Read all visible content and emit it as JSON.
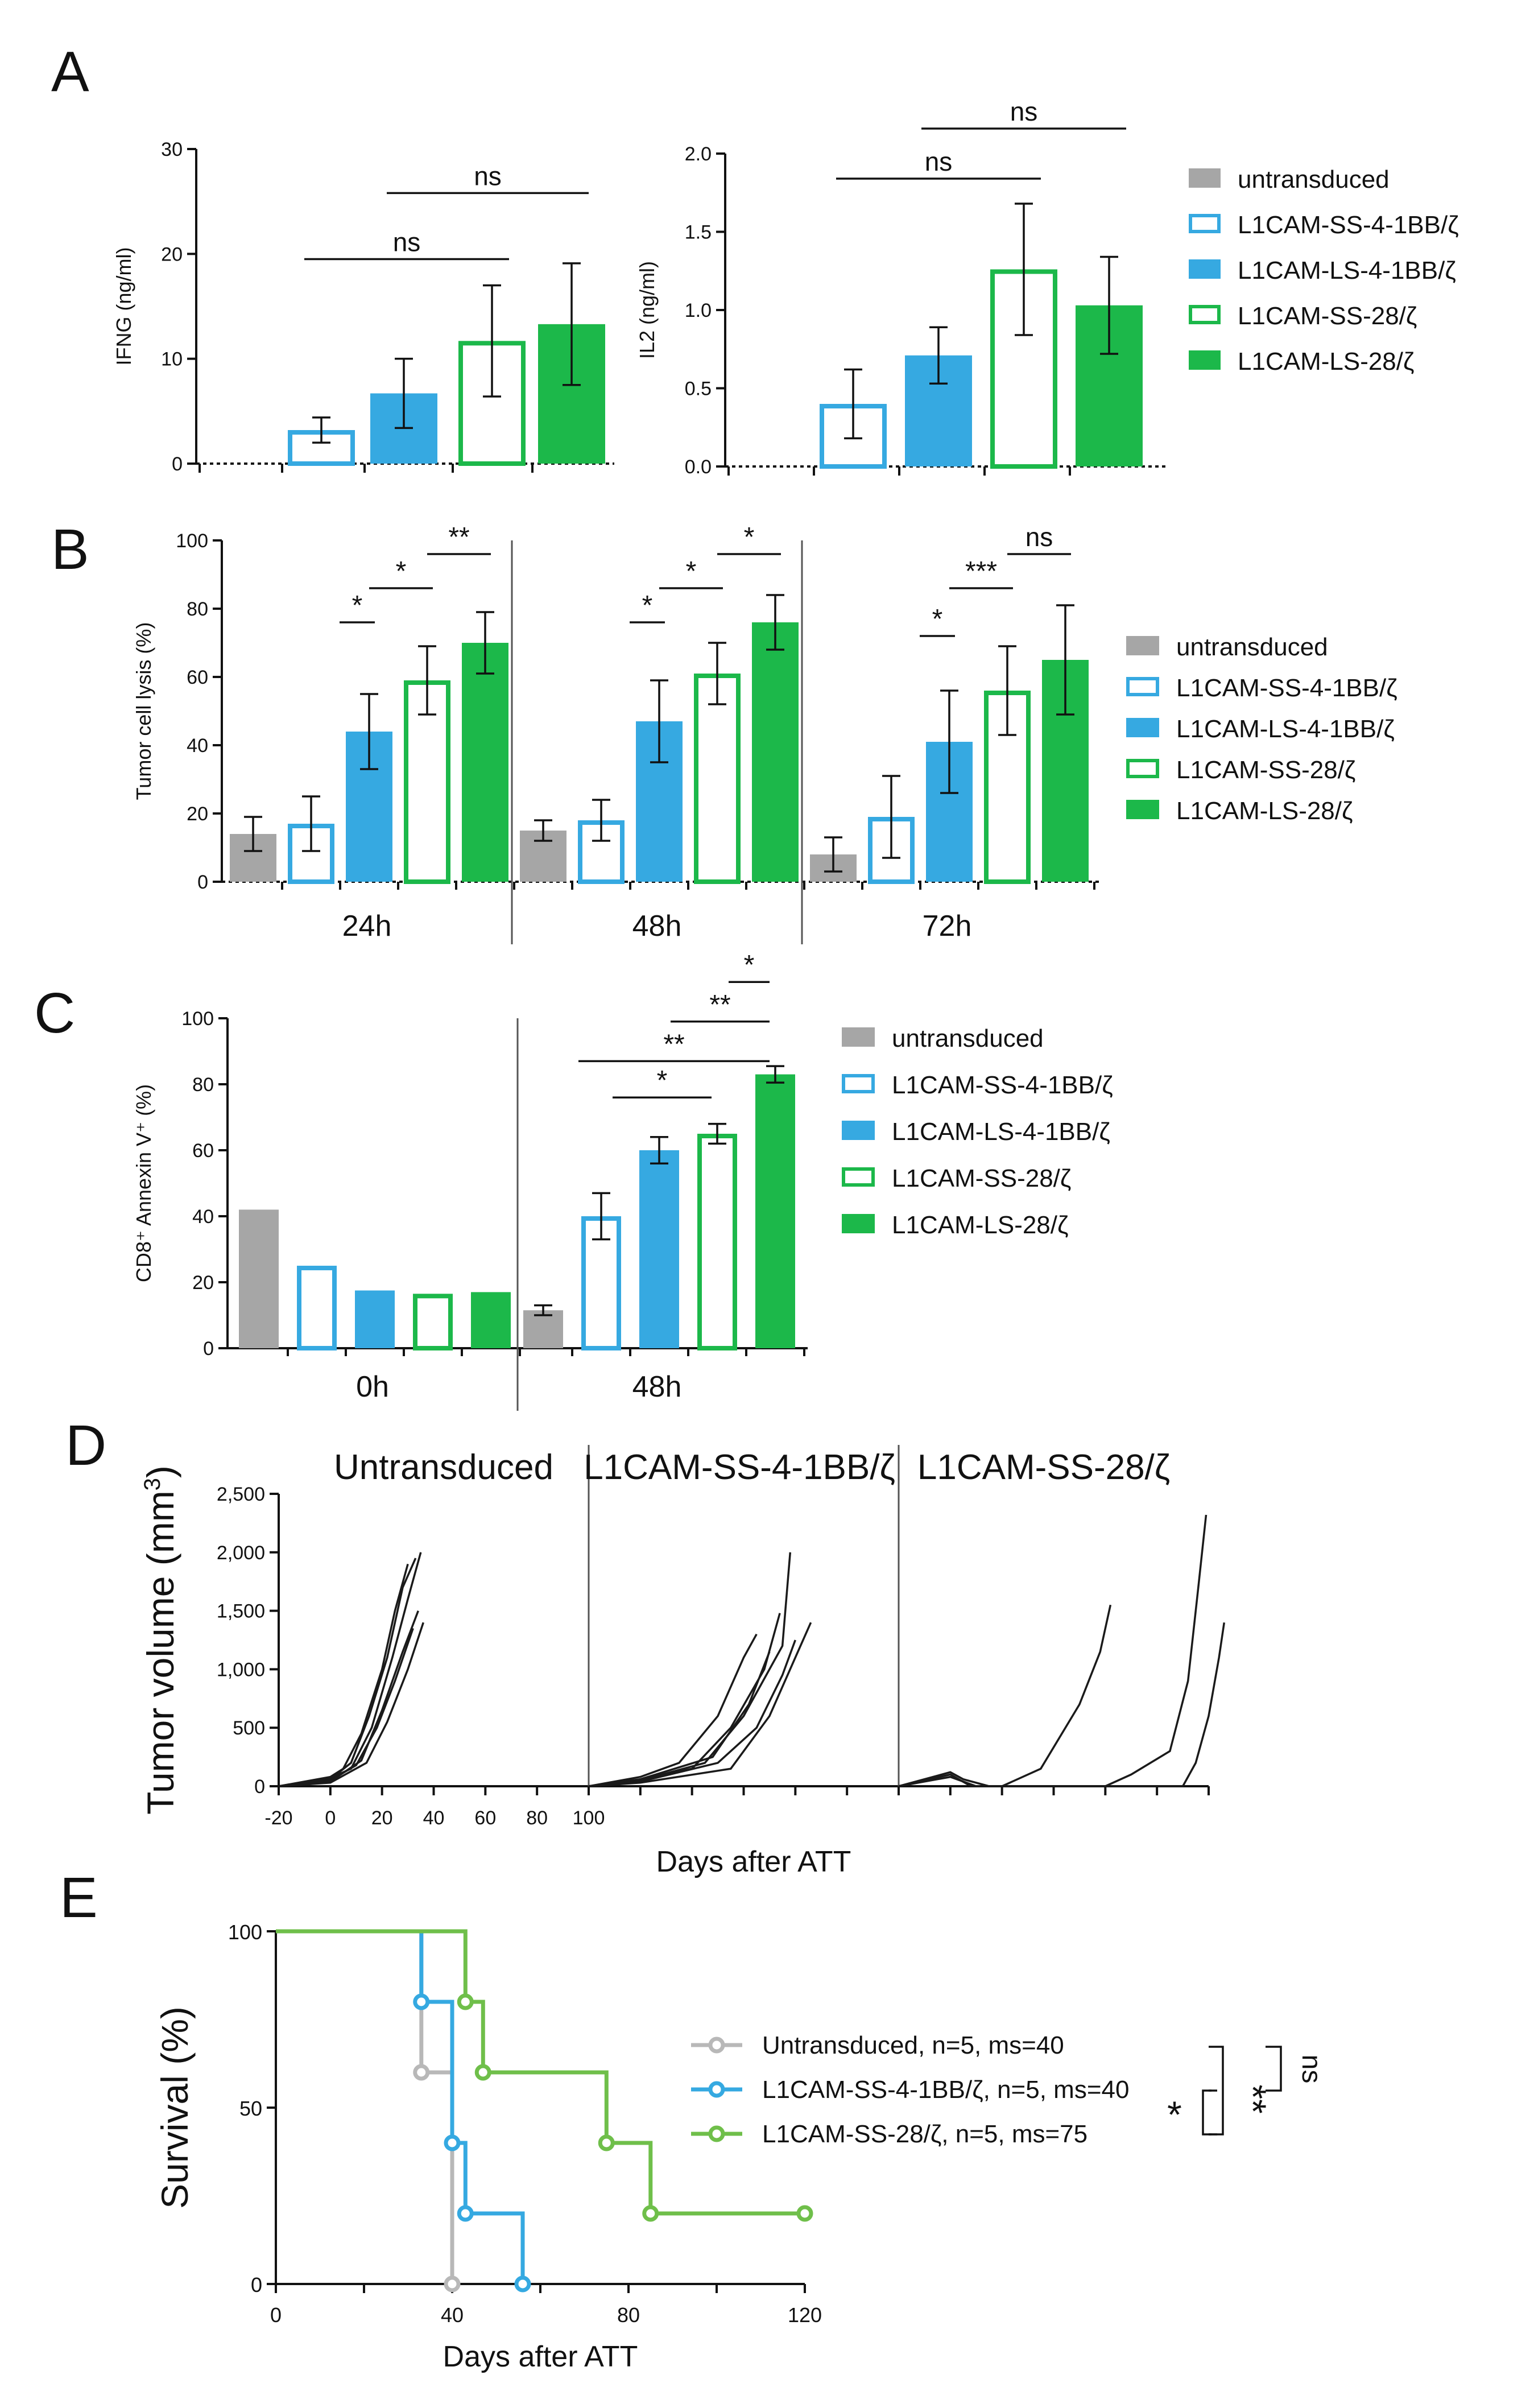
{
  "colors": {
    "untransduced": "#a6a6a6",
    "bb_blue": "#36a9e1",
    "cd28_green": "#1cb84a",
    "km_grey": "#b8b8b8",
    "km_blue": "#35a9e1",
    "km_green": "#6fbf4a"
  },
  "legend": {
    "items": [
      {
        "label": "untransduced",
        "key": "untransduced",
        "fill": "solid"
      },
      {
        "label": "L1CAM-SS-4-1BB/ζ",
        "key": "bb",
        "fill": "hollow"
      },
      {
        "label": "L1CAM-LS-4-1BB/ζ",
        "key": "bb",
        "fill": "solid"
      },
      {
        "label": "L1CAM-SS-28/ζ",
        "key": "cd28",
        "fill": "hollow"
      },
      {
        "label": "L1CAM-LS-28/ζ",
        "key": "cd28",
        "fill": "solid"
      }
    ]
  },
  "chart_data": [
    {
      "panel": "A",
      "id": "A1",
      "type": "bar",
      "ylabel": "IFNG (ng/ml)",
      "ylim": [
        0,
        30
      ],
      "yticks": [
        "0",
        "10",
        "20",
        "30"
      ],
      "categories": [
        "untransduced",
        "L1CAM-SS-4-1BB/ζ",
        "L1CAM-LS-4-1BB/ζ",
        "L1CAM-SS-28/ζ",
        "L1CAM-LS-28/ζ"
      ],
      "values": [
        0,
        3.2,
        6.7,
        11.7,
        13.3
      ],
      "errors": [
        0,
        1.2,
        3.3,
        5.3,
        5.8
      ],
      "significance": [
        {
          "from": 1,
          "to": 3,
          "label": "ns",
          "y": 19.5
        },
        {
          "from": 2,
          "to": 4,
          "label": "ns",
          "y": 25.8
        }
      ]
    },
    {
      "panel": "A",
      "id": "A2",
      "type": "bar",
      "ylabel": "IL2 (ng/ml)",
      "ylim": [
        0,
        2.0
      ],
      "yticks": [
        "0.0",
        "0.5",
        "1.0",
        "1.5",
        "2.0"
      ],
      "categories": [
        "untransduced",
        "L1CAM-SS-4-1BB/ζ",
        "L1CAM-LS-4-1BB/ζ",
        "L1CAM-SS-28/ζ",
        "L1CAM-LS-28/ζ"
      ],
      "values": [
        0,
        0.4,
        0.71,
        1.26,
        1.03
      ],
      "errors": [
        0,
        0.22,
        0.18,
        0.42,
        0.31
      ],
      "significance": [
        {
          "from": 1,
          "to": 3,
          "label": "ns",
          "y": 1.84
        },
        {
          "from": 2,
          "to": 4,
          "label": "ns",
          "y": 2.16
        }
      ]
    },
    {
      "panel": "B",
      "id": "B",
      "type": "bar",
      "ylabel": "Tumor cell lysis   (%)",
      "ylim": [
        0,
        100
      ],
      "yticks": [
        "0",
        "20",
        "40",
        "60",
        "80",
        "100"
      ],
      "groups": [
        "24h",
        "48h",
        "72h"
      ],
      "series": [
        {
          "name": "untransduced",
          "values": [
            14,
            15,
            8
          ],
          "errors": [
            5,
            3,
            5
          ]
        },
        {
          "name": "L1CAM-SS-4-1BB/ζ",
          "values": [
            17,
            18,
            19
          ],
          "errors": [
            8,
            6,
            12
          ]
        },
        {
          "name": "L1CAM-LS-4-1BB/ζ",
          "values": [
            44,
            47,
            41
          ],
          "errors": [
            11,
            12,
            15
          ]
        },
        {
          "name": "L1CAM-SS-28/ζ",
          "values": [
            59,
            61,
            56
          ],
          "errors": [
            10,
            9,
            13
          ]
        },
        {
          "name": "L1CAM-LS-28/ζ",
          "values": [
            70,
            76,
            65
          ],
          "errors": [
            9,
            8,
            16
          ]
        }
      ],
      "significance": [
        {
          "group": 0,
          "from": 2,
          "to": 3,
          "label": "*",
          "y": 76
        },
        {
          "group": 0,
          "from": 3,
          "to": 4,
          "label": "*",
          "y": 86
        },
        {
          "group": 0,
          "from": 4,
          "to": 5,
          "label": "**",
          "y": 96
        },
        {
          "group": 1,
          "from": 2,
          "to": 3,
          "label": "*",
          "y": 76
        },
        {
          "group": 1,
          "from": 3,
          "to": 4,
          "label": "*",
          "y": 86
        },
        {
          "group": 1,
          "from": 4,
          "to": 5,
          "label": "*",
          "y": 96
        },
        {
          "group": 2,
          "from": 2,
          "to": 3,
          "label": "*",
          "y": 72
        },
        {
          "group": 2,
          "from": 3,
          "to": 4,
          "label": "***",
          "y": 86
        },
        {
          "group": 2,
          "from": 4,
          "to": 5,
          "label": "ns",
          "y": 96
        }
      ]
    },
    {
      "panel": "C",
      "id": "C",
      "type": "bar",
      "ylabel": "CD8⁺ Annexin V⁺ (%)",
      "ylim": [
        0,
        100
      ],
      "yticks": [
        "0",
        "20",
        "40",
        "60",
        "80",
        "100"
      ],
      "groups": [
        "0h",
        "48h"
      ],
      "series": [
        {
          "name": "untransduced",
          "values": [
            42,
            11.5
          ],
          "errors": [
            0,
            1.5
          ]
        },
        {
          "name": "L1CAM-SS-4-1BB/ζ",
          "values": [
            25,
            40
          ],
          "errors": [
            0,
            7
          ]
        },
        {
          "name": "L1CAM-LS-4-1BB/ζ",
          "values": [
            17.5,
            60
          ],
          "errors": [
            0,
            4
          ]
        },
        {
          "name": "L1CAM-SS-28/ζ",
          "values": [
            16.5,
            65
          ],
          "errors": [
            0,
            3
          ]
        },
        {
          "name": "L1CAM-LS-28/ζ",
          "values": [
            17,
            83
          ],
          "errors": [
            0,
            2.5
          ]
        }
      ],
      "significance": [
        {
          "group": 1,
          "from": 1,
          "to": 3,
          "label": "*",
          "y": 76
        },
        {
          "group": 1,
          "from": 1,
          "to": 4,
          "label": "**",
          "y": 87
        },
        {
          "group": 1,
          "from": 2,
          "to": 4,
          "label": "**",
          "y": 99
        },
        {
          "group": 1,
          "from": 3,
          "to": 4,
          "label": "*",
          "y": 111
        }
      ]
    },
    {
      "panel": "D",
      "id": "D",
      "type": "line",
      "ylabel": "Tumor volume (mm",
      "ylabel_sup": "3",
      "ylabel_end": ")",
      "xlabel": "Days after ATT",
      "ylim": [
        0,
        2500
      ],
      "yticks": [
        "0",
        "500",
        "1,000",
        "1,500",
        "2,000",
        "2,500"
      ],
      "xlim": [
        -20,
        100
      ],
      "xticks": [
        "-20",
        "0",
        "20",
        "40",
        "60",
        "80",
        "100"
      ],
      "subpanels": [
        {
          "title": "Untransduced",
          "curves": [
            [
              [
                -20,
                0
              ],
              [
                0,
                80
              ],
              [
                5,
                150
              ],
              [
                12,
                450
              ],
              [
                20,
                1000
              ],
              [
                25,
                1500
              ],
              [
                30,
                1900
              ]
            ],
            [
              [
                -20,
                0
              ],
              [
                0,
                60
              ],
              [
                8,
                200
              ],
              [
                15,
                600
              ],
              [
                22,
                1100
              ],
              [
                28,
                1700
              ],
              [
                33,
                1950
              ]
            ],
            [
              [
                -20,
                0
              ],
              [
                0,
                50
              ],
              [
                10,
                180
              ],
              [
                18,
                500
              ],
              [
                25,
                900
              ],
              [
                32,
                1350
              ]
            ],
            [
              [
                -20,
                0
              ],
              [
                0,
                40
              ],
              [
                12,
                220
              ],
              [
                20,
                650
              ],
              [
                28,
                1150
              ],
              [
                34,
                1500
              ]
            ],
            [
              [
                -20,
                0
              ],
              [
                0,
                30
              ],
              [
                14,
                200
              ],
              [
                22,
                550
              ],
              [
                30,
                1000
              ],
              [
                36,
                1400
              ]
            ],
            [
              [
                -20,
                0
              ],
              [
                0,
                70
              ],
              [
                8,
                150
              ],
              [
                16,
                500
              ],
              [
                24,
                1100
              ],
              [
                30,
                1600
              ],
              [
                35,
                2000
              ]
            ]
          ]
        },
        {
          "title": "L1CAM-SS-4-1BB/ζ",
          "curves": [
            [
              [
                -20,
                0
              ],
              [
                0,
                80
              ],
              [
                15,
                200
              ],
              [
                30,
                600
              ],
              [
                40,
                1100
              ],
              [
                45,
                1300
              ]
            ],
            [
              [
                -20,
                0
              ],
              [
                0,
                60
              ],
              [
                20,
                150
              ],
              [
                35,
                500
              ],
              [
                48,
                1000
              ],
              [
                54,
                1480
              ]
            ],
            [
              [
                -20,
                0
              ],
              [
                0,
                50
              ],
              [
                25,
                200
              ],
              [
                40,
                600
              ],
              [
                55,
                1200
              ],
              [
                58,
                2000
              ]
            ],
            [
              [
                -20,
                0
              ],
              [
                0,
                40
              ],
              [
                30,
                200
              ],
              [
                45,
                500
              ],
              [
                55,
                950
              ],
              [
                60,
                1250
              ]
            ],
            [
              [
                -20,
                0
              ],
              [
                0,
                30
              ],
              [
                35,
                150
              ],
              [
                50,
                600
              ],
              [
                60,
                1100
              ],
              [
                66,
                1400
              ]
            ],
            [
              [
                -20,
                0
              ],
              [
                0,
                60
              ],
              [
                28,
                250
              ],
              [
                42,
                700
              ],
              [
                50,
                1150
              ]
            ]
          ]
        },
        {
          "title": "L1CAM-SS-28/ζ",
          "curves": [
            [
              [
                -20,
                0
              ],
              [
                0,
                120
              ],
              [
                5,
                60
              ],
              [
                15,
                0
              ],
              [
                20,
                0
              ],
              [
                35,
                150
              ],
              [
                50,
                700
              ],
              [
                58,
                1150
              ],
              [
                62,
                1550
              ]
            ],
            [
              [
                -20,
                0
              ],
              [
                0,
                100
              ],
              [
                8,
                0
              ],
              [
                60,
                0
              ],
              [
                70,
                100
              ],
              [
                85,
                300
              ],
              [
                92,
                900
              ],
              [
                96,
                1700
              ],
              [
                99,
                2320
              ]
            ],
            [
              [
                -20,
                0
              ],
              [
                0,
                80
              ],
              [
                10,
                0
              ],
              [
                90,
                0
              ],
              [
                95,
                200
              ],
              [
                100,
                600
              ],
              [
                104,
                1100
              ],
              [
                106,
                1400
              ]
            ]
          ]
        }
      ]
    },
    {
      "panel": "E",
      "id": "E",
      "type": "line",
      "subtype": "kaplan-meier",
      "ylabel": "Survival (%)",
      "xlabel": "Days after ATT",
      "ylim": [
        0,
        100
      ],
      "yticks": [
        "0",
        "50",
        "100"
      ],
      "xlim": [
        0,
        120
      ],
      "xticks": [
        "0",
        "40",
        "80",
        "120"
      ],
      "series": [
        {
          "name": "Untransduced, n=5, ms=40",
          "key": "km_grey",
          "steps": [
            [
              0,
              100
            ],
            [
              33,
              100
            ],
            [
              33,
              60
            ],
            [
              40,
              60
            ],
            [
              40,
              0
            ]
          ],
          "markers": [
            [
              33,
              60
            ],
            [
              40,
              0
            ]
          ]
        },
        {
          "name": "L1CAM-SS-4-1BB/ζ, n=5, ms=40",
          "key": "km_blue",
          "steps": [
            [
              0,
              100
            ],
            [
              33,
              100
            ],
            [
              33,
              80
            ],
            [
              40,
              80
            ],
            [
              40,
              40
            ],
            [
              43,
              40
            ],
            [
              43,
              20
            ],
            [
              56,
              20
            ],
            [
              56,
              0
            ]
          ],
          "markers": [
            [
              33,
              80
            ],
            [
              40,
              40
            ],
            [
              43,
              20
            ],
            [
              56,
              0
            ]
          ]
        },
        {
          "name": "L1CAM-SS-28/ζ, n=5, ms=75",
          "key": "km_green",
          "steps": [
            [
              0,
              100
            ],
            [
              43,
              100
            ],
            [
              43,
              80
            ],
            [
              47,
              80
            ],
            [
              47,
              60
            ],
            [
              75,
              60
            ],
            [
              75,
              40
            ],
            [
              85,
              40
            ],
            [
              85,
              20
            ],
            [
              120,
              20
            ]
          ],
          "markers": [
            [
              43,
              80
            ],
            [
              47,
              60
            ],
            [
              75,
              40
            ],
            [
              85,
              20
            ],
            [
              120,
              20
            ]
          ]
        }
      ],
      "significance": [
        {
          "between": "Untransduced vs L1CAM-SS-4-1BB/ζ",
          "label": "ns"
        },
        {
          "between": "Untransduced vs L1CAM-SS-28/ζ",
          "label": "**"
        },
        {
          "between": "L1CAM-SS-4-1BB/ζ vs L1CAM-SS-28/ζ",
          "label": "*"
        }
      ]
    }
  ],
  "panels": {
    "A": "A",
    "B": "B",
    "C": "C",
    "D": "D",
    "E": "E"
  }
}
